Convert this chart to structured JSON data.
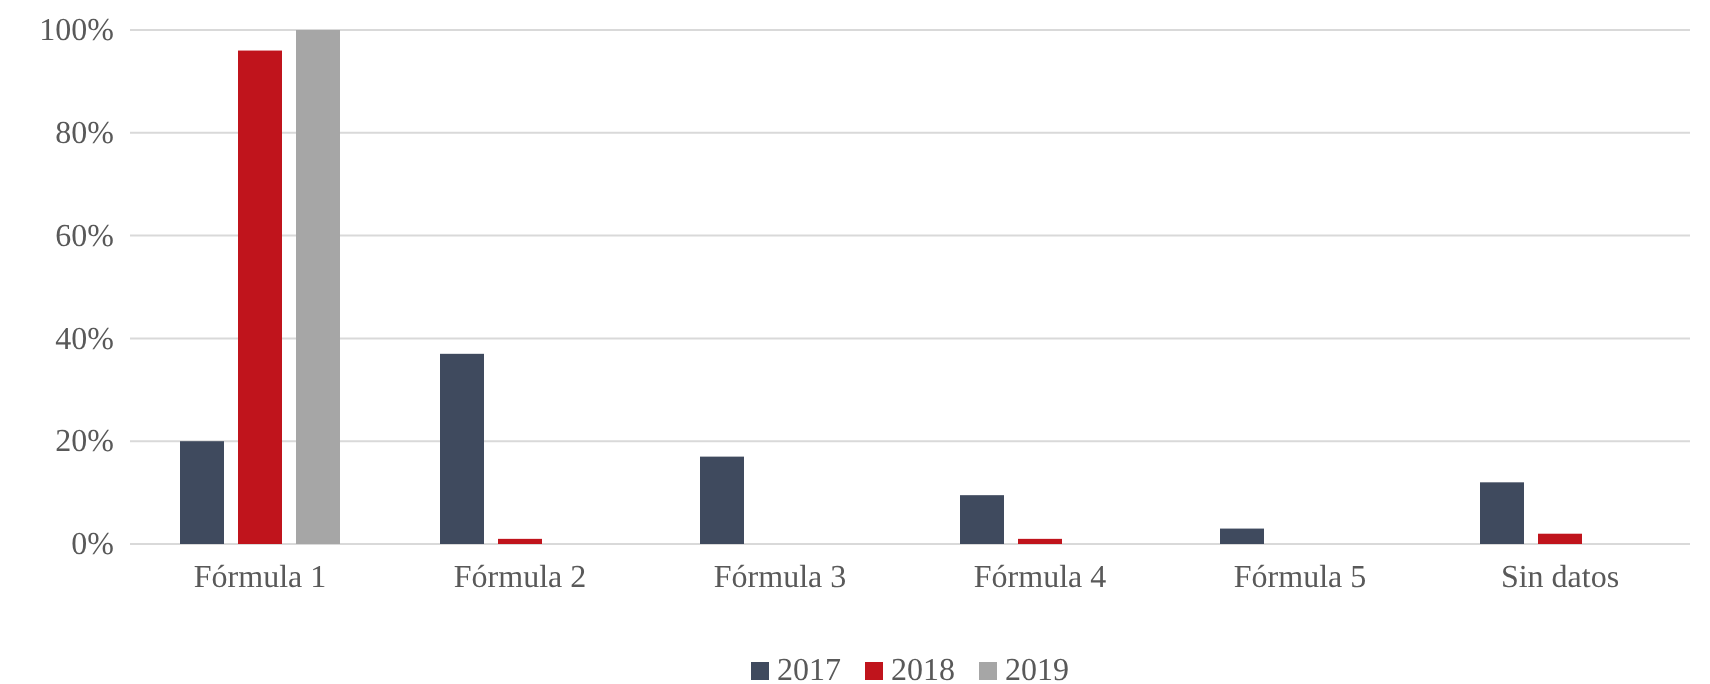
{
  "chart_data": {
    "type": "bar",
    "categories": [
      "Fórmula 1",
      "Fórmula 2",
      "Fórmula 3",
      "Fórmula 4",
      "Fórmula 5",
      "Sin datos"
    ],
    "series": [
      {
        "name": "2017",
        "color": "#3f4a5e",
        "values": [
          20,
          37,
          17,
          9.5,
          3,
          12
        ]
      },
      {
        "name": "2018",
        "color": "#c0141c",
        "values": [
          96,
          1,
          0,
          1,
          0,
          2
        ]
      },
      {
        "name": "2019",
        "color": "#a6a6a6",
        "values": [
          100,
          0,
          0,
          0,
          0,
          0
        ]
      }
    ],
    "ylim": [
      0,
      100
    ],
    "yticks": [
      {
        "value": 0,
        "label": "0%"
      },
      {
        "value": 20,
        "label": "20%"
      },
      {
        "value": 40,
        "label": "40%"
      },
      {
        "value": 60,
        "label": "60%"
      },
      {
        "value": 80,
        "label": "80%"
      },
      {
        "value": 100,
        "label": "100%"
      }
    ],
    "grid": "y",
    "legend": "bottom"
  }
}
